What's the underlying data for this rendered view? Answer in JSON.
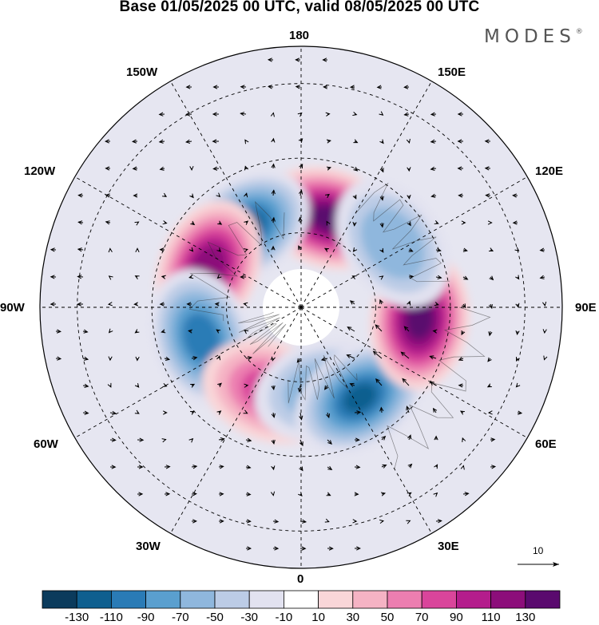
{
  "title": "Base 01/05/2025 00 UTC, valid 08/05/2025 00 UTC",
  "brand": {
    "name": "MODES",
    "mark": "®"
  },
  "longitude_labels": {
    "top": "180",
    "top_left": "150W",
    "top_right": "150E",
    "upper_left": "120W",
    "upper_right": "120E",
    "left": "90W",
    "right": "90E",
    "lower_left": "60W",
    "lower_right": "60E",
    "bottom_left": "30W",
    "bottom_right": "30E",
    "bottom": "0"
  },
  "reference_vector": {
    "label": "10"
  },
  "colorbar": {
    "labels": [
      "-130",
      "-110",
      "-90",
      "-70",
      "-50",
      "-30",
      "-10",
      "10",
      "30",
      "50",
      "70",
      "90",
      "110",
      "130"
    ],
    "colors": [
      "#0b3b5c",
      "#0f5f8f",
      "#2a7bb6",
      "#5a9fcf",
      "#8fb7dd",
      "#bccce6",
      "#e2e2f0",
      "#ffffff",
      "#f9d6d8",
      "#f5b3c4",
      "#ec7eb0",
      "#d9459b",
      "#b41d8c",
      "#8c0e7a",
      "#5a0a6e"
    ]
  },
  "anomaly_centers": [
    {
      "lon": 163,
      "colat": 25,
      "value": 135
    },
    {
      "lon": -145,
      "colat": 26,
      "value": -115
    },
    {
      "lon": -113,
      "colat": 27,
      "value": 125
    },
    {
      "lon": -73,
      "colat": 28,
      "value": -100
    },
    {
      "lon": -20,
      "colat": 24,
      "value": 80
    },
    {
      "lon": 15,
      "colat": 23,
      "value": -70
    },
    {
      "lon": 33,
      "colat": 29,
      "value": -110
    },
    {
      "lon": 84,
      "colat": 32,
      "value": 140
    },
    {
      "lon": 125,
      "colat": 30,
      "value": -65
    }
  ]
}
